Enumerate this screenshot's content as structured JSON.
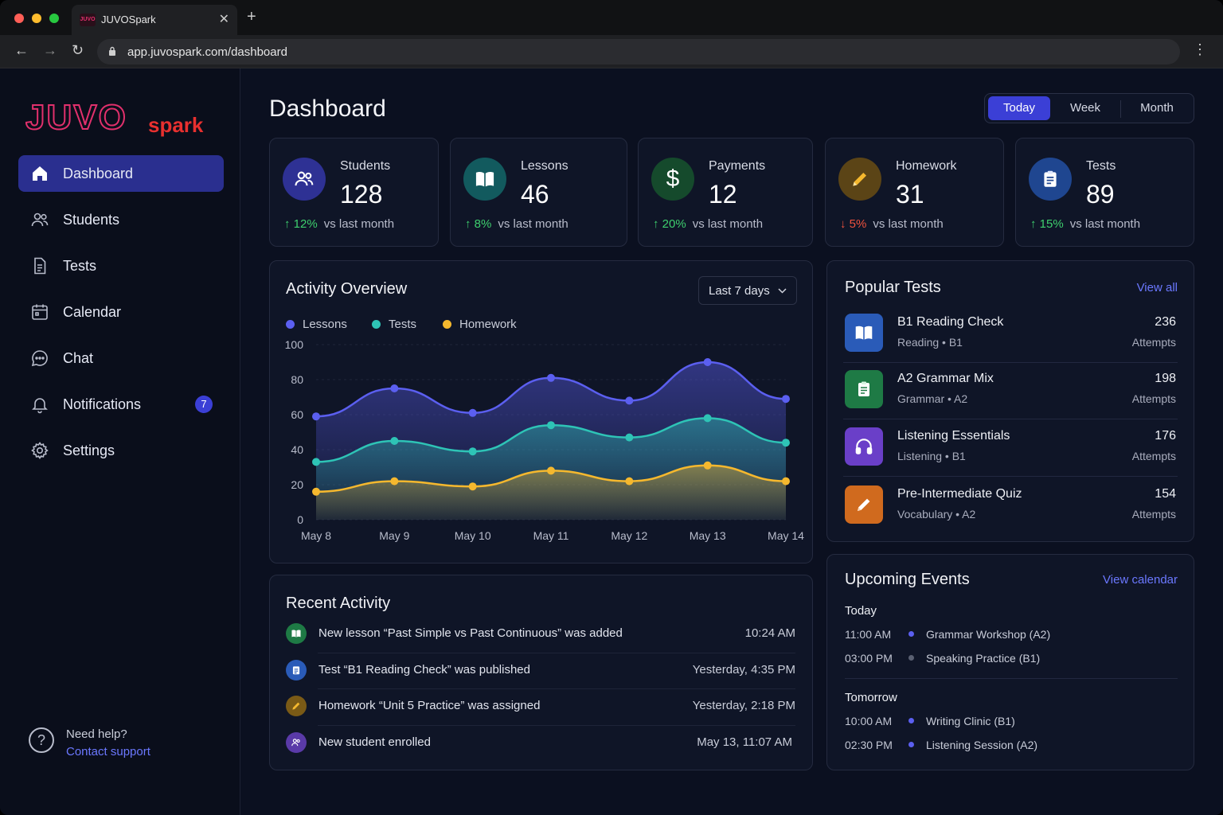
{
  "browser": {
    "tab_title": "JUVOSpark",
    "tab_logo_text": "JUVO",
    "url": "app.juvospark.com/dashboard"
  },
  "brand": {
    "name_part1": "JUVO",
    "name_part2": "spark",
    "accent": "#e1306c"
  },
  "sidebar": {
    "items": [
      {
        "label": "Dashboard",
        "icon": "home-icon",
        "active": true
      },
      {
        "label": "Students",
        "icon": "users-icon"
      },
      {
        "label": "Tests",
        "icon": "document-icon"
      },
      {
        "label": "Calendar",
        "icon": "calendar-icon"
      },
      {
        "label": "Chat",
        "icon": "chat-icon"
      },
      {
        "label": "Notifications",
        "icon": "bell-icon",
        "badge": "7"
      },
      {
        "label": "Settings",
        "icon": "gear-icon"
      }
    ],
    "help": {
      "title": "Need help?",
      "link": "Contact support"
    }
  },
  "header": {
    "title": "Dashboard",
    "ranges": [
      "Today",
      "Week",
      "Month"
    ],
    "active_range": "Today"
  },
  "stats": [
    {
      "label": "Students",
      "value": "128",
      "delta": "12%",
      "direction": "up",
      "delta_text": "vs last month",
      "icon": "users-icon",
      "color": "#3b3fd6"
    },
    {
      "label": "Lessons",
      "value": "46",
      "delta": "8%",
      "direction": "up",
      "delta_text": "vs last month",
      "icon": "book-icon",
      "color": "#1f8a8a"
    },
    {
      "label": "Payments",
      "value": "12",
      "delta": "20%",
      "direction": "up",
      "delta_text": "vs last month",
      "icon": "dollar-icon",
      "color": "#1e7a45"
    },
    {
      "label": "Homework",
      "value": "31",
      "delta": "5%",
      "direction": "down",
      "delta_text": "vs last month",
      "icon": "pencil-icon",
      "color": "#a77a1a"
    },
    {
      "label": "Tests",
      "value": "89",
      "delta": "15%",
      "direction": "up",
      "delta_text": "vs last month",
      "icon": "clipboard-icon",
      "color": "#2a5bb8"
    }
  ],
  "activity": {
    "title": "Activity Overview",
    "dropdown": "Last 7 days"
  },
  "chart_data": {
    "type": "area",
    "categories": [
      "May 8",
      "May 9",
      "May 10",
      "May 11",
      "May 12",
      "May 13",
      "May 14"
    ],
    "ylim": [
      0,
      100
    ],
    "yticks": [
      "100",
      "80",
      "60",
      "40",
      "20",
      "0"
    ],
    "series": [
      {
        "name": "Lessons",
        "color": "#5b5ff0",
        "values": [
          59,
          75,
          61,
          81,
          68,
          90,
          69
        ]
      },
      {
        "name": "Tests",
        "color": "#2ec4b6",
        "values": [
          33,
          45,
          39,
          54,
          47,
          58,
          44
        ]
      },
      {
        "name": "Homework",
        "color": "#f5b82e",
        "values": [
          16,
          22,
          19,
          28,
          22,
          31,
          22
        ]
      }
    ],
    "legend": "top-left"
  },
  "popular": {
    "title": "Popular Tests",
    "link": "View all",
    "items": [
      {
        "name": "B1 Reading Check",
        "meta": "Reading • B1",
        "count": "236",
        "attempts": "Attempts",
        "icon": "book-icon",
        "color": "#2a5bb8"
      },
      {
        "name": "A2 Grammar Mix",
        "meta": "Grammar • A2",
        "count": "198",
        "attempts": "Attempts",
        "icon": "clipboard-icon",
        "color": "#1e7a45"
      },
      {
        "name": "Listening Essentials",
        "meta": "Listening • B1",
        "count": "176",
        "attempts": "Attempts",
        "icon": "headphones-icon",
        "color": "#6a3fc8"
      },
      {
        "name": "Pre-Intermediate Quiz",
        "meta": "Vocabulary • A2",
        "count": "154",
        "attempts": "Attempts",
        "icon": "pencil-icon",
        "color": "#d06a1e"
      }
    ]
  },
  "recent": {
    "title": "Recent Activity",
    "items": [
      {
        "text": "New lesson “Past Simple vs Past Continuous” was added",
        "time": "10:24 AM",
        "icon": "book-icon",
        "color": "#1e7a45"
      },
      {
        "text": "Test “B1 Reading Check” was published",
        "time": "Yesterday, 4:35 PM",
        "icon": "clipboard-icon",
        "color": "#2a5bb8"
      },
      {
        "text": "Homework “Unit 5 Practice” was assigned",
        "time": "Yesterday, 2:18 PM",
        "icon": "pencil-icon",
        "color": "#a77a1a"
      },
      {
        "text": "New student enrolled",
        "time": "May 13, 11:07 AM",
        "icon": "users-icon",
        "color": "#6a3fc8"
      }
    ]
  },
  "events": {
    "title": "Upcoming Events",
    "link": "View calendar",
    "groups": [
      {
        "label": "Today",
        "items": [
          {
            "time": "11:00 AM",
            "name": "Grammar Workshop (A2)",
            "dot": "#5b5ff0"
          },
          {
            "time": "03:00 PM",
            "name": "Speaking Practice (B1)",
            "dot": "#5a6072"
          }
        ]
      },
      {
        "label": "Tomorrow",
        "items": [
          {
            "time": "10:00 AM",
            "name": "Writing Clinic (B1)",
            "dot": "#5b5ff0"
          },
          {
            "time": "02:30 PM",
            "name": "Listening Session (A2)",
            "dot": "#5b5ff0"
          }
        ]
      }
    ]
  }
}
